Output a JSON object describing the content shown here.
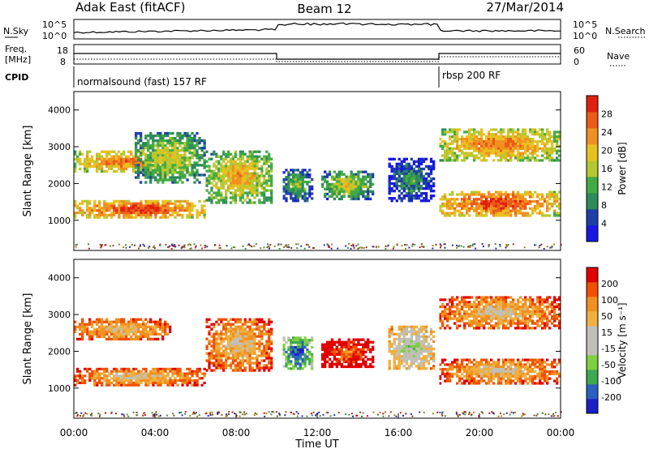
{
  "header": {
    "station": "Adak East (fitACF)",
    "beam": "Beam 12",
    "date": "27/Mar/2014"
  },
  "summary_panels": {
    "nsky": {
      "label": "N.Sky",
      "ticks": [
        "10^5",
        "10^0"
      ],
      "right_label": "N.Search",
      "right_ticks": [
        "10^5",
        "10^0"
      ]
    },
    "freq": {
      "label_line1": "Freq.",
      "label_line2": "[MHz]",
      "ticks": [
        "18",
        "8"
      ],
      "right_label": "Nave",
      "right_ticks": [
        "60",
        "0"
      ]
    },
    "cpid": {
      "label": "CPID",
      "segments": [
        {
          "label": "normalsound (fast) 157 RF",
          "start_hour": 0,
          "end_hour": 18
        },
        {
          "label": "rbsp 200 RF",
          "start_hour": 18,
          "end_hour": 24
        }
      ]
    }
  },
  "x_axis": {
    "label": "Time UT",
    "ticks": [
      "00:00",
      "04:00",
      "08:00",
      "12:00",
      "16:00",
      "20:00",
      "00:00"
    ]
  },
  "colors": {
    "power": [
      "#1818e0",
      "#1f3fa8",
      "#2f8a5a",
      "#44aa44",
      "#b4c830",
      "#e8c020",
      "#f09020",
      "#ec5a18",
      "#e02010"
    ],
    "velocity": [
      "#e00000",
      "#f05000",
      "#f09020",
      "#f0b040",
      "#c0c0b8",
      "#c0c0b8",
      "#7fd040",
      "#3fa850",
      "#2b60c0",
      "#1a20c8"
    ],
    "noise": [
      "#7a5020",
      "#2a2aa0",
      "#a08020",
      "#4a8a4a",
      "#b02020"
    ]
  },
  "chart_data": [
    {
      "type": "heatmap",
      "name": "power",
      "ylabel": "Slant Range [km]",
      "xlabel": "",
      "xlim": [
        0,
        24
      ],
      "ylim": [
        180,
        4500
      ],
      "y_ticks": [
        1000,
        2000,
        3000,
        4000
      ],
      "colorbar": {
        "label": "Power [dB]",
        "ticks": [
          4,
          8,
          12,
          16,
          20,
          24,
          28
        ]
      },
      "blobs": [
        {
          "t0": 0.0,
          "t1": 6.5,
          "r0": 1050,
          "r1": 1550,
          "level": 8
        },
        {
          "t0": 6.5,
          "t1": 9.8,
          "r0": 1450,
          "r1": 2900,
          "level": 6
        },
        {
          "t0": 0.0,
          "t1": 4.8,
          "r0": 2300,
          "r1": 2900,
          "level": 7
        },
        {
          "t0": 3.0,
          "t1": 6.5,
          "r0": 2000,
          "r1": 3400,
          "level": 5
        },
        {
          "t0": 10.3,
          "t1": 11.8,
          "r0": 1500,
          "r1": 2400,
          "level": 4
        },
        {
          "t0": 12.2,
          "t1": 14.8,
          "r0": 1550,
          "r1": 2350,
          "level": 5
        },
        {
          "t0": 15.5,
          "t1": 17.8,
          "r0": 1500,
          "r1": 2700,
          "level": 3
        },
        {
          "t0": 18.0,
          "t1": 24.0,
          "r0": 1100,
          "r1": 1800,
          "level": 8
        },
        {
          "t0": 18.0,
          "t1": 24.0,
          "r0": 2600,
          "r1": 3500,
          "level": 7
        }
      ]
    },
    {
      "type": "heatmap",
      "name": "velocity",
      "ylabel": "Slant Range [km]",
      "xlabel": "Time UT",
      "xlim": [
        0,
        24
      ],
      "ylim": [
        180,
        4500
      ],
      "y_ticks": [
        1000,
        2000,
        3000,
        4000
      ],
      "colorbar": {
        "label": "Velocity [m s⁻¹]",
        "ticks": [
          200,
          100,
          50,
          15,
          -15,
          -50,
          -100,
          -200
        ]
      },
      "blobs": [
        {
          "t0": 0.0,
          "t1": 6.5,
          "r0": 1050,
          "r1": 1550,
          "level": 4
        },
        {
          "t0": 6.5,
          "t1": 9.8,
          "r0": 1450,
          "r1": 2900,
          "level": 4
        },
        {
          "t0": 0.0,
          "t1": 4.8,
          "r0": 2300,
          "r1": 2900,
          "level": 4
        },
        {
          "t0": 10.3,
          "t1": 11.8,
          "r0": 1500,
          "r1": 2400,
          "level": 9
        },
        {
          "t0": 12.2,
          "t1": 14.8,
          "r0": 1550,
          "r1": 2350,
          "level": 2
        },
        {
          "t0": 15.5,
          "t1": 17.8,
          "r0": 1500,
          "r1": 2700,
          "level": 6
        },
        {
          "t0": 18.0,
          "t1": 24.0,
          "r0": 1100,
          "r1": 1800,
          "level": 4
        },
        {
          "t0": 18.0,
          "t1": 24.0,
          "r0": 2600,
          "r1": 3500,
          "level": 4
        }
      ]
    }
  ]
}
